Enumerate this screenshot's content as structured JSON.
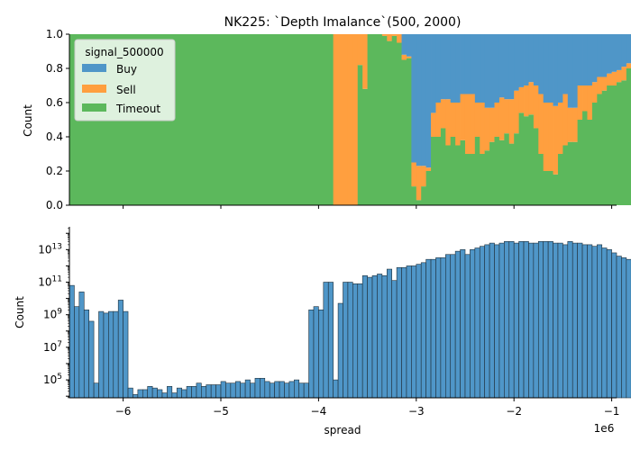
{
  "chart_data": [
    {
      "type": "bar",
      "stacked": "fill",
      "title": "NK225: `Depth Imalance`(500, 2000)",
      "xlabel": "",
      "ylabel": "Count",
      "ylim": [
        0,
        1
      ],
      "yticks": [
        "0.0",
        "0.2",
        "0.4",
        "0.6",
        "0.8",
        "1.0"
      ],
      "legend": {
        "title": "signal_500000",
        "placement": "top-left",
        "entries": [
          "Buy",
          "Sell",
          "Timeout"
        ]
      },
      "bin_start": -6.55,
      "bin_width": 0.05,
      "x_unit": "1e6",
      "series": [
        {
          "name": "Timeout",
          "color": "#5cb85c",
          "values": [
            1,
            1,
            1,
            1,
            1,
            1,
            1,
            1,
            1,
            1,
            1,
            1,
            1,
            1,
            1,
            1,
            1,
            1,
            1,
            1,
            1,
            1,
            1,
            1,
            1,
            1,
            1,
            1,
            1,
            1,
            1,
            1,
            1,
            1,
            1,
            1,
            1,
            1,
            1,
            1,
            1,
            1,
            1,
            1,
            1,
            1,
            1,
            1,
            1,
            1,
            1,
            1,
            1,
            1,
            0,
            0,
            0,
            0,
            0,
            0.82,
            0.68,
            1,
            1,
            1,
            0.99,
            0.96,
            0.99,
            0.95,
            0.85,
            0.86,
            0.11,
            0.03,
            0.11,
            0.2,
            0.4,
            0.4,
            0.45,
            0.35,
            0.4,
            0.35,
            0.38,
            0.3,
            0.3,
            0.4,
            0.3,
            0.32,
            0.37,
            0.4,
            0.38,
            0.42,
            0.36,
            0.42,
            0.54,
            0.52,
            0.53,
            0.45,
            0.3,
            0.2,
            0.2,
            0.18,
            0.3,
            0.35,
            0.37,
            0.37,
            0.5,
            0.55,
            0.5,
            0.6,
            0.65,
            0.67,
            0.7,
            0.7,
            0.72,
            0.73,
            0.8,
            0.52,
            0.6
          ]
        },
        {
          "name": "Sell",
          "color": "#ff9f3f",
          "values": [
            0,
            0,
            0,
            0,
            0,
            0,
            0,
            0,
            0,
            0,
            0,
            0,
            0,
            0,
            0,
            0,
            0,
            0,
            0,
            0,
            0,
            0,
            0,
            0,
            0,
            0,
            0,
            0,
            0,
            0,
            0,
            0,
            0,
            0,
            0,
            0,
            0,
            0,
            0,
            0,
            0,
            0,
            0,
            0,
            0,
            0,
            0,
            0,
            0,
            0,
            0,
            0,
            0,
            0,
            1,
            1,
            1,
            1,
            1,
            0.18,
            0.32,
            0,
            0,
            0,
            0.01,
            0.04,
            0.01,
            0.05,
            0.03,
            0.01,
            0.14,
            0.2,
            0.12,
            0.02,
            0.14,
            0.2,
            0.17,
            0.27,
            0.2,
            0.25,
            0.27,
            0.35,
            0.35,
            0.2,
            0.3,
            0.25,
            0.2,
            0.2,
            0.25,
            0.2,
            0.26,
            0.25,
            0.15,
            0.18,
            0.19,
            0.25,
            0.35,
            0.4,
            0.4,
            0.4,
            0.3,
            0.3,
            0.2,
            0.2,
            0.2,
            0.15,
            0.2,
            0.12,
            0.1,
            0.08,
            0.07,
            0.08,
            0.07,
            0.08,
            0.03,
            0.06,
            0.04
          ]
        },
        {
          "name": "Buy",
          "color": "#4f96c8",
          "values": [
            0,
            0,
            0,
            0,
            0,
            0,
            0,
            0,
            0,
            0,
            0,
            0,
            0,
            0,
            0,
            0,
            0,
            0,
            0,
            0,
            0,
            0,
            0,
            0,
            0,
            0,
            0,
            0,
            0,
            0,
            0,
            0,
            0,
            0,
            0,
            0,
            0,
            0,
            0,
            0,
            0,
            0,
            0,
            0,
            0,
            0,
            0,
            0,
            0,
            0,
            0,
            0,
            0,
            0,
            0,
            0,
            0,
            0,
            0,
            0,
            0,
            0,
            0,
            0,
            0,
            0,
            0,
            0,
            0.12,
            0.13,
            0.75,
            0.77,
            0.77,
            0.78,
            0.46,
            0.4,
            0.38,
            0.38,
            0.4,
            0.4,
            0.35,
            0.35,
            0.35,
            0.4,
            0.4,
            0.43,
            0.43,
            0.4,
            0.37,
            0.38,
            0.38,
            0.33,
            0.31,
            0.3,
            0.28,
            0.3,
            0.35,
            0.4,
            0.4,
            0.42,
            0.4,
            0.35,
            0.43,
            0.43,
            0.3,
            0.3,
            0.3,
            0.28,
            0.25,
            0.25,
            0.23,
            0.22,
            0.21,
            0.19,
            0.17,
            0.42,
            0.36
          ]
        }
      ]
    },
    {
      "type": "bar",
      "title": "",
      "xlabel": "spread",
      "ylabel": "Count",
      "y_scale": "log",
      "ylim_log10": [
        3.9,
        14.4
      ],
      "yticks": [
        {
          "base": "10",
          "exp": "5",
          "value": 5
        },
        {
          "base": "10",
          "exp": "7",
          "value": 7
        },
        {
          "base": "10",
          "exp": "9",
          "value": 9
        },
        {
          "base": "10",
          "exp": "11",
          "value": 11
        },
        {
          "base": "10",
          "exp": "13",
          "value": 13
        }
      ],
      "xlim": [
        -6.55,
        -0.95
      ],
      "xticks": [
        -6,
        -5,
        -4,
        -3,
        -2,
        -1
      ],
      "xtick_labels": [
        "−6",
        "−5",
        "−4",
        "−3",
        "−2",
        "−1"
      ],
      "offset_text": "1e6",
      "color": "#4f96c8",
      "bin_start": -6.55,
      "bin_width": 0.05,
      "values_log10": [
        10.8,
        9.5,
        10.4,
        9.3,
        8.6,
        4.8,
        9.2,
        9.1,
        9.2,
        9.2,
        9.9,
        9.2,
        4.5,
        4.1,
        4.4,
        4.4,
        4.6,
        4.5,
        4.4,
        4.2,
        4.6,
        4.2,
        4.5,
        4.4,
        4.6,
        4.6,
        4.8,
        4.6,
        4.7,
        4.7,
        4.7,
        4.9,
        4.8,
        4.8,
        4.9,
        4.8,
        5.0,
        4.8,
        5.1,
        5.1,
        4.9,
        4.8,
        4.9,
        4.9,
        4.8,
        4.9,
        5.0,
        4.8,
        4.8,
        9.3,
        9.5,
        9.3,
        11.0,
        11.0,
        5.0,
        9.7,
        11.0,
        11.0,
        10.9,
        10.9,
        11.4,
        11.3,
        11.4,
        11.5,
        11.4,
        11.8,
        11.1,
        11.9,
        11.9,
        12.0,
        12.0,
        12.1,
        12.2,
        12.4,
        12.4,
        12.5,
        12.5,
        12.7,
        12.7,
        12.9,
        13.0,
        12.7,
        13.0,
        13.1,
        13.2,
        13.3,
        13.4,
        13.3,
        13.4,
        13.5,
        13.5,
        13.4,
        13.5,
        13.5,
        13.4,
        13.4,
        13.5,
        13.5,
        13.5,
        13.4,
        13.4,
        13.3,
        13.5,
        13.4,
        13.4,
        13.3,
        13.3,
        13.2,
        13.3,
        13.1,
        13.0,
        12.8,
        12.6,
        12.5,
        12.4,
        12.3,
        12.0
      ]
    }
  ]
}
